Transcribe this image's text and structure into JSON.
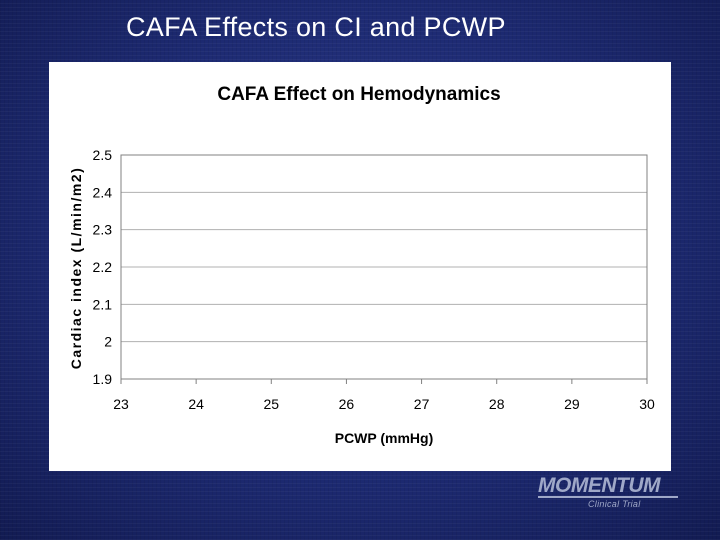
{
  "slide": {
    "title": "CAFA Effects on CI and PCWP"
  },
  "logo": {
    "name": "MOMENTUM",
    "subtitle": "Clinical Trial"
  },
  "colors": {
    "background": "#1c2a6e",
    "panel": "#ffffff",
    "grid": "#b0b0b0",
    "plot_border": "#808080",
    "logo": "#9fa8c8"
  },
  "chart_data": {
    "type": "scatter",
    "title": "CAFA Effect on Hemodynamics",
    "xlabel": "PCWP (mmHg)",
    "ylabel": "Cardiac index (L/min/m2)",
    "xlim": [
      23,
      30
    ],
    "ylim": [
      1.9,
      2.5
    ],
    "x_ticks": [
      "23",
      "24",
      "25",
      "26",
      "27",
      "28",
      "29",
      "30"
    ],
    "y_ticks": [
      "1.9",
      "2",
      "2.1",
      "2.2",
      "2.3",
      "2.4",
      "2.5"
    ],
    "grid": true,
    "series": []
  }
}
